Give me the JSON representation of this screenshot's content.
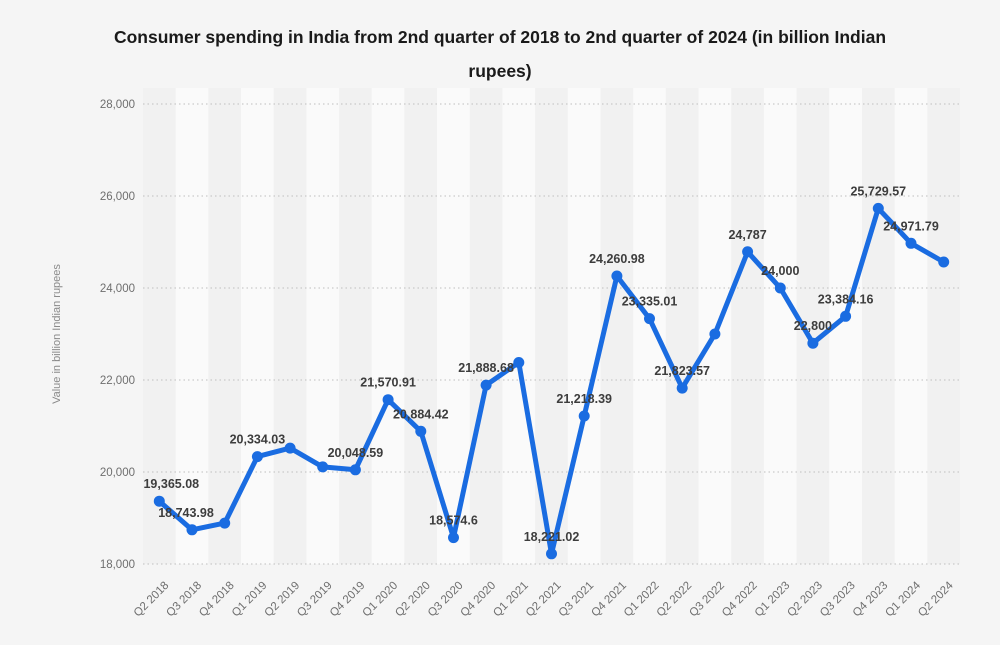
{
  "page": {
    "background_color": "#f5f5f5",
    "band_color_dark": "#f1f1f1",
    "band_color_light": "#fafafa",
    "gridline_color": "#c9c9c9"
  },
  "chart_data": {
    "type": "line",
    "title": "Consumer spending in India from 2nd quarter of 2018 to 2nd quarter of 2024 (in billion Indian rupees)",
    "xlabel": "",
    "ylabel": "Value in billion Indian rupees",
    "ylim": [
      18000,
      28000
    ],
    "ytick_step": 2000,
    "ytick_labels": [
      "18,000",
      "20,000",
      "22,000",
      "24,000",
      "26,000",
      "28,000"
    ],
    "grid": "horizontal-dotted",
    "legend": "none",
    "line_color": "#1a6ce1",
    "categories": [
      "Q2 2018",
      "Q3 2018",
      "Q4 2018",
      "Q1 2019",
      "Q2 2019",
      "Q3 2019",
      "Q4 2019",
      "Q1 2020",
      "Q2 2020",
      "Q3 2020",
      "Q4 2020",
      "Q1 2021",
      "Q2 2021",
      "Q3 2021",
      "Q4 2021",
      "Q1 2022",
      "Q2 2022",
      "Q3 2022",
      "Q4 2022",
      "Q1 2023",
      "Q2 2023",
      "Q3 2023",
      "Q4 2023",
      "Q1 2024",
      "Q2 2024"
    ],
    "series": [
      {
        "name": "Consumer spending",
        "values": [
          19365.08,
          18743.98,
          18890,
          20334.03,
          20520,
          20110,
          20048.59,
          21570.91,
          20884.42,
          18574.6,
          21888.68,
          22380,
          18221.02,
          21218.39,
          24260.98,
          23335.01,
          21823.57,
          23000,
          24787,
          24000,
          22800,
          23384.16,
          25729.57,
          24971.79,
          24565
        ]
      }
    ],
    "point_labels": [
      "19,365.08",
      "18,743.98",
      null,
      "20,334.03",
      null,
      null,
      "20,048.59",
      "21,570.91",
      "20,884.42",
      "18,574.6",
      "21,888.68",
      null,
      "18,221.02",
      "21,218.39",
      "24,260.98",
      "23,335.01",
      "21,823.57",
      null,
      "24,787",
      "24,000",
      "22,800",
      "23,384.16",
      "25,729.57",
      "24,971.79",
      null
    ],
    "label_dx": {
      "0": 12,
      "1": -6
    }
  }
}
